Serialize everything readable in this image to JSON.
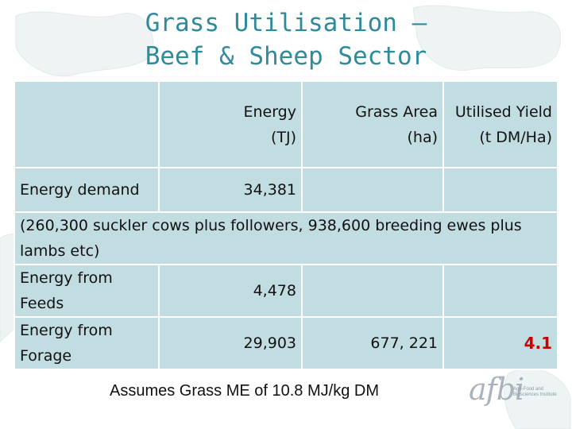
{
  "title": {
    "line1": "Grass Utilisation –",
    "line2": "Beef & Sheep Sector"
  },
  "table": {
    "headers": {
      "energy": [
        "Energy",
        "(TJ)"
      ],
      "grass_area": [
        "Grass Area",
        "(ha)"
      ],
      "utilised_yield": [
        "Utilised Yield",
        "(t DM/Ha)"
      ]
    },
    "energy_demand": {
      "label": "Energy demand",
      "energy": "34,381"
    },
    "note": "(260,300 suckler cows plus followers, 938,600 breeding ewes plus lambs etc)",
    "feeds": {
      "label": "Energy from Feeds",
      "energy": "4,478"
    },
    "forage": {
      "label": "Energy from Forage",
      "energy": "29,903",
      "grass_area": "677, 221",
      "utilised_yield": "4.1"
    }
  },
  "footnote": "Assumes Grass ME of 10.8 MJ/kg DM",
  "logo": {
    "word": "afbi",
    "subtitle": "Agri-Food and Biosciences Institute"
  },
  "colors": {
    "title": "#2f8a9a",
    "cell": "#c1dde1",
    "highlight": "#cc0000"
  }
}
